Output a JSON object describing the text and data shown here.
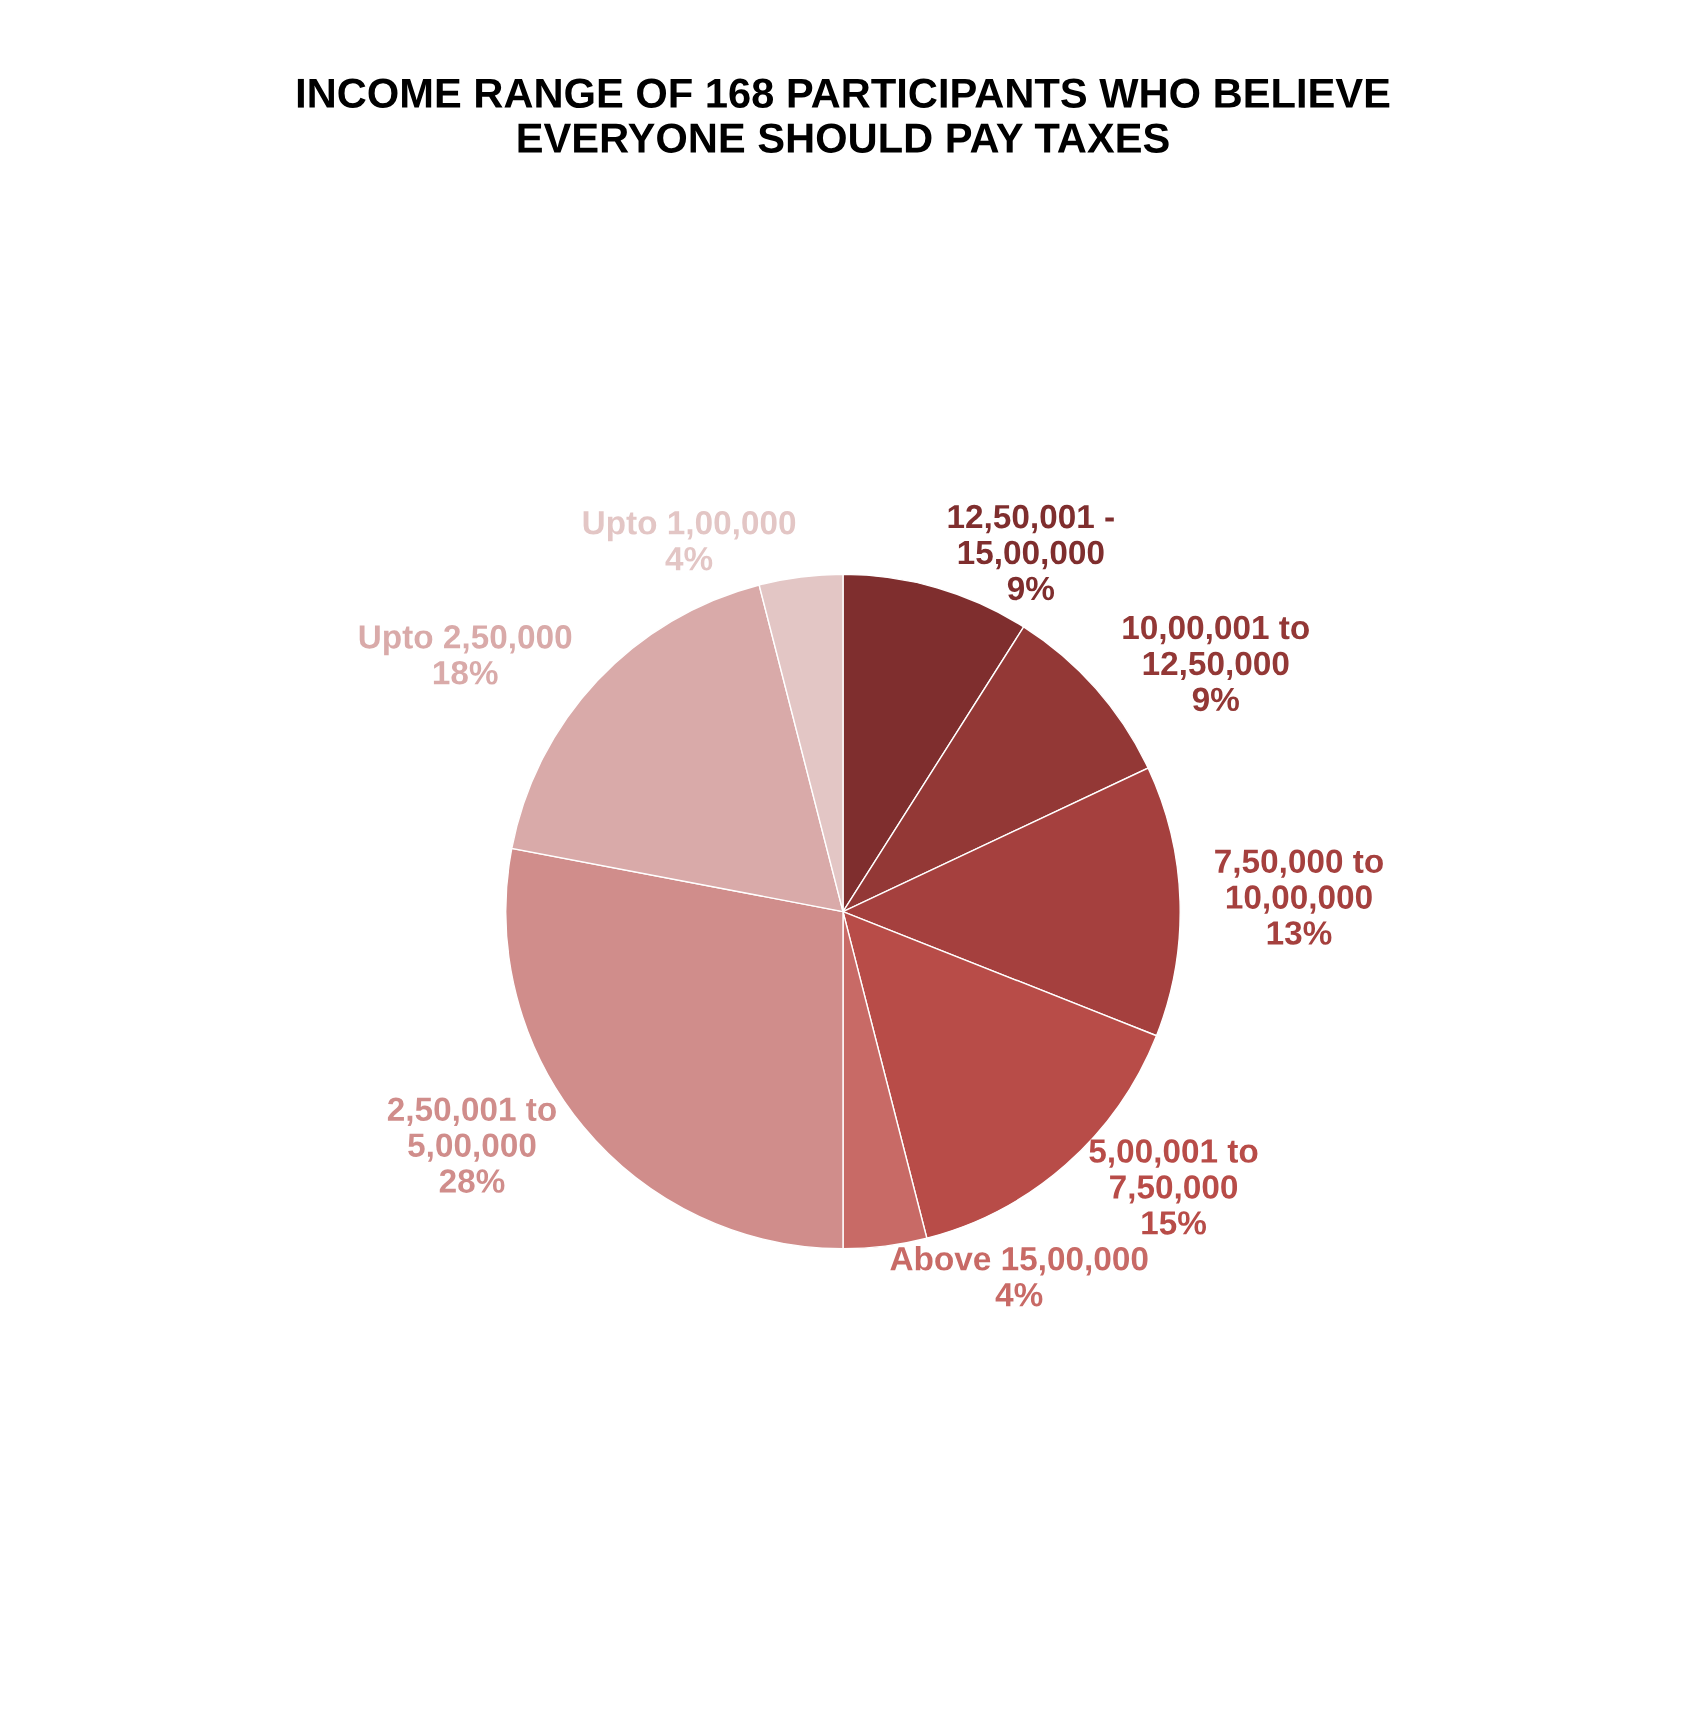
{
  "chart_data": {
    "type": "pie",
    "title": "INCOME RANGE OF 168 PARTICIPANTS WHO BELIEVE\nEVERYONE SHOULD PAY TAXES",
    "categories": [
      "12,50,001 -\n15,00,000",
      "10,00,001 to\n12,50,000",
      "7,50,000 to\n10,00,000",
      "5,00,001 to\n7,50,000",
      "Above 15,00,000",
      "2,50,001 to\n5,00,000",
      "Upto 2,50,000",
      "Upto 1,00,000"
    ],
    "values": [
      9,
      9,
      13,
      15,
      4,
      28,
      18,
      4
    ],
    "value_labels": [
      "9%",
      "9%",
      "13%",
      "15%",
      "4%",
      "28%",
      "18%",
      "4%"
    ],
    "colors": [
      "#7f2e2e",
      "#933836",
      "#a5403e",
      "#b84c48",
      "#c86a66",
      "#d08d8b",
      "#d9aaa9",
      "#e3c6c5"
    ],
    "legend": false
  }
}
